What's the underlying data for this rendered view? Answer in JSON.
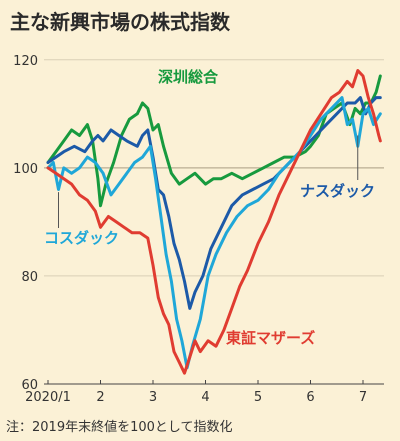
{
  "title": "主な新興市場の株式指数",
  "note": "注：2019年末終値を100として指数化",
  "colors": {
    "background": "#fbf1d6",
    "grid": "#d9cfb6",
    "axis": "#444444"
  },
  "chart_data": {
    "type": "line",
    "title": "主な新興市場の株式指数",
    "ylim": [
      60,
      122
    ],
    "xlim": [
      0,
      6.35
    ],
    "yticks": [
      60,
      80,
      100,
      120
    ],
    "xtick_positions": [
      0,
      1,
      2,
      3,
      4,
      5,
      6
    ],
    "xtick_labels": [
      "2020/1",
      "2",
      "3",
      "4",
      "5",
      "6",
      "7"
    ],
    "grid": "horizontal",
    "series": [
      {
        "name": "深圳総合",
        "color": "#179a3e",
        "x": [
          0,
          0.15,
          0.3,
          0.45,
          0.6,
          0.75,
          0.85,
          0.95,
          1.0,
          1.1,
          1.25,
          1.4,
          1.55,
          1.7,
          1.8,
          1.9,
          2.0,
          2.1,
          2.2,
          2.35,
          2.5,
          2.65,
          2.8,
          3.0,
          3.15,
          3.3,
          3.5,
          3.7,
          3.9,
          4.1,
          4.3,
          4.5,
          4.7,
          4.9,
          5.0,
          5.15,
          5.3,
          5.45,
          5.6,
          5.75,
          5.85,
          5.95,
          6.05,
          6.15,
          6.25,
          6.33
        ],
        "values": [
          101,
          103,
          105,
          107,
          106,
          108,
          105,
          98,
          93,
          97,
          101,
          106,
          109,
          110,
          112,
          111,
          107,
          108,
          104,
          99,
          97,
          98,
          99,
          97,
          98,
          98,
          99,
          98,
          99,
          100,
          101,
          102,
          102,
          103,
          104,
          106,
          110,
          111,
          112,
          108,
          111,
          110,
          112,
          112,
          114,
          117
        ]
      },
      {
        "name": "ナスダック",
        "color": "#1c5aa8",
        "x": [
          0,
          0.15,
          0.3,
          0.5,
          0.7,
          0.85,
          0.95,
          1.05,
          1.2,
          1.35,
          1.5,
          1.7,
          1.8,
          1.9,
          2.0,
          2.1,
          2.2,
          2.3,
          2.4,
          2.5,
          2.6,
          2.7,
          2.8,
          2.95,
          3.1,
          3.3,
          3.5,
          3.7,
          3.9,
          4.1,
          4.3,
          4.5,
          4.7,
          4.9,
          5.1,
          5.3,
          5.5,
          5.7,
          5.85,
          5.95,
          6.05,
          6.15,
          6.25,
          6.33
        ],
        "values": [
          101,
          102,
          103,
          104,
          103,
          105,
          106,
          105,
          107,
          106,
          105,
          104,
          106,
          107,
          102,
          96,
          95,
          91,
          86,
          83,
          79,
          74,
          77,
          80,
          85,
          89,
          93,
          95,
          96,
          97,
          98,
          100,
          102,
          104,
          106,
          108,
          110,
          112,
          112,
          113,
          110,
          112,
          113,
          113
        ]
      },
      {
        "name": "コスダック",
        "color": "#1fa7d8",
        "x": [
          0,
          0.1,
          0.2,
          0.3,
          0.45,
          0.6,
          0.75,
          0.9,
          1.05,
          1.2,
          1.35,
          1.5,
          1.65,
          1.8,
          1.95,
          2.05,
          2.15,
          2.25,
          2.35,
          2.45,
          2.55,
          2.65,
          2.75,
          2.9,
          3.05,
          3.2,
          3.4,
          3.6,
          3.8,
          4.0,
          4.2,
          4.4,
          4.6,
          4.8,
          5.0,
          5.2,
          5.4,
          5.6,
          5.7,
          5.8,
          5.9,
          6.0,
          6.1,
          6.2,
          6.33
        ],
        "values": [
          100,
          101,
          96,
          100,
          99,
          100,
          102,
          101,
          99,
          95,
          97,
          99,
          101,
          102,
          104,
          98,
          91,
          84,
          79,
          72,
          68,
          63,
          67,
          72,
          80,
          84,
          88,
          91,
          93,
          94,
          96,
          99,
          101,
          103,
          106,
          109,
          111,
          113,
          108,
          109,
          104,
          110,
          111,
          108,
          110
        ]
      },
      {
        "name": "東証マザーズ",
        "color": "#e03c31",
        "x": [
          0,
          0.15,
          0.3,
          0.45,
          0.6,
          0.75,
          0.9,
          1.0,
          1.15,
          1.3,
          1.45,
          1.6,
          1.75,
          1.9,
          2.0,
          2.1,
          2.2,
          2.3,
          2.4,
          2.5,
          2.6,
          2.7,
          2.8,
          2.9,
          3.05,
          3.2,
          3.35,
          3.5,
          3.65,
          3.8,
          4.0,
          4.2,
          4.4,
          4.6,
          4.8,
          5.0,
          5.2,
          5.4,
          5.55,
          5.7,
          5.8,
          5.9,
          6.0,
          6.1,
          6.2,
          6.3,
          6.33
        ],
        "values": [
          100,
          99,
          98,
          97,
          95,
          94,
          92,
          89,
          91,
          90,
          89,
          88,
          88,
          87,
          82,
          76,
          73,
          71,
          66,
          64,
          62,
          65,
          68,
          66,
          68,
          67,
          70,
          74,
          78,
          81,
          86,
          90,
          95,
          99,
          103,
          107,
          110,
          113,
          114,
          116,
          115,
          118,
          117,
          113,
          110,
          106,
          105
        ]
      }
    ]
  },
  "labels": {
    "shenzhen": "深圳総合",
    "nasdaq": "ナスダック",
    "kosdaq": "コスダック",
    "mothers": "東証マザーズ"
  }
}
